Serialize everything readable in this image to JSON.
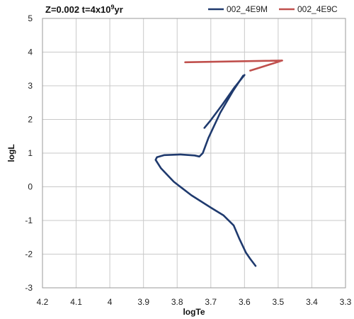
{
  "chart_data": {
    "type": "line",
    "title_prefix": "Z=0.002 t=4x10",
    "title_superscript": "9",
    "title_suffix": "yr",
    "xlabel": "logTe",
    "ylabel": "logL",
    "xlim": [
      4.2,
      3.3
    ],
    "ylim": [
      -3,
      5
    ],
    "x_reversed": true,
    "x_ticks": [
      "4.2",
      "4.1",
      "4",
      "3.9",
      "3.8",
      "3.7",
      "3.6",
      "3.5",
      "3.4",
      "3.3"
    ],
    "y_ticks": [
      "5",
      "4",
      "3",
      "2",
      "1",
      "0",
      "-1",
      "-2",
      "-3"
    ],
    "grid": true,
    "legend": "top-right",
    "series": [
      {
        "name": "002_4E9M",
        "color": "#1f3a6e",
        "x": [
          3.567,
          3.583,
          3.596,
          3.615,
          3.632,
          3.662,
          3.7,
          3.758,
          3.81,
          3.848,
          3.864,
          3.86,
          3.838,
          3.79,
          3.748,
          3.734,
          3.724,
          3.707,
          3.672,
          3.634,
          3.604
        ],
        "y": [
          -2.35,
          -2.14,
          -1.95,
          -1.55,
          -1.15,
          -0.85,
          -0.62,
          -0.25,
          0.15,
          0.55,
          0.8,
          0.88,
          0.94,
          0.96,
          0.93,
          0.9,
          1.0,
          1.45,
          2.2,
          2.85,
          3.3
        ]
      },
      {
        "name": "002_4E9M",
        "color": "#1f3a6e",
        "x": [
          3.719,
          3.7,
          3.665,
          3.63,
          3.6
        ],
        "y": [
          1.75,
          1.98,
          2.45,
          2.95,
          3.32
        ]
      },
      {
        "name": "002_4E9C",
        "color": "#c0504d",
        "x": [
          3.583,
          3.551,
          3.488,
          3.776
        ],
        "y": [
          3.45,
          3.55,
          3.75,
          3.7
        ]
      }
    ]
  }
}
